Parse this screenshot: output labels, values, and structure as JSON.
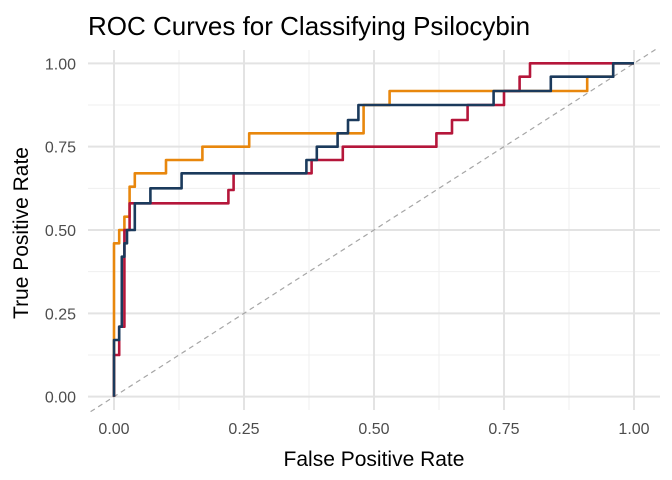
{
  "chart_data": {
    "type": "line",
    "title": "ROC Curves for Classifying Psilocybin",
    "xlabel": "False Positive Rate",
    "ylabel": "True Positive Rate",
    "xlim": [
      -0.05,
      1.05
    ],
    "ylim": [
      -0.04,
      1.04
    ],
    "x_ticks": [
      0.0,
      0.25,
      0.5,
      0.75,
      1.0
    ],
    "x_tick_labels": [
      "0.00",
      "0.25",
      "0.50",
      "0.75",
      "1.00"
    ],
    "y_ticks": [
      0.0,
      0.25,
      0.5,
      0.75,
      1.0
    ],
    "y_tick_labels": [
      "0.00",
      "0.25",
      "0.50",
      "0.75",
      "1.00"
    ],
    "grid": true,
    "legend": "none",
    "reference_line": {
      "from": [
        0,
        0
      ],
      "to": [
        1,
        1
      ],
      "color": "#a6a6a6",
      "style": "dashed"
    },
    "series": [
      {
        "color": "#e8870d",
        "points": [
          [
            0,
            0
          ],
          [
            0,
            0.46
          ],
          [
            0.01,
            0.46
          ],
          [
            0.01,
            0.5
          ],
          [
            0.02,
            0.5
          ],
          [
            0.02,
            0.54
          ],
          [
            0.03,
            0.54
          ],
          [
            0.03,
            0.63
          ],
          [
            0.04,
            0.63
          ],
          [
            0.04,
            0.67
          ],
          [
            0.1,
            0.67
          ],
          [
            0.1,
            0.71
          ],
          [
            0.17,
            0.71
          ],
          [
            0.17,
            0.75
          ],
          [
            0.26,
            0.75
          ],
          [
            0.26,
            0.79
          ],
          [
            0.48,
            0.79
          ],
          [
            0.48,
            0.875
          ],
          [
            0.53,
            0.875
          ],
          [
            0.53,
            0.917
          ],
          [
            0.76,
            0.917
          ],
          [
            0.76,
            0.917
          ],
          [
            0.91,
            0.917
          ],
          [
            0.91,
            0.96
          ],
          [
            0.96,
            0.96
          ],
          [
            0.96,
            1.0
          ],
          [
            1.0,
            1.0
          ]
        ]
      },
      {
        "color": "#b5163a",
        "points": [
          [
            0,
            0
          ],
          [
            0,
            0.125
          ],
          [
            0.01,
            0.125
          ],
          [
            0.01,
            0.21
          ],
          [
            0.02,
            0.21
          ],
          [
            0.02,
            0.5
          ],
          [
            0.03,
            0.5
          ],
          [
            0.03,
            0.58
          ],
          [
            0.22,
            0.58
          ],
          [
            0.22,
            0.62
          ],
          [
            0.23,
            0.62
          ],
          [
            0.23,
            0.67
          ],
          [
            0.38,
            0.67
          ],
          [
            0.38,
            0.71
          ],
          [
            0.44,
            0.71
          ],
          [
            0.44,
            0.75
          ],
          [
            0.62,
            0.75
          ],
          [
            0.62,
            0.79
          ],
          [
            0.65,
            0.79
          ],
          [
            0.65,
            0.83
          ],
          [
            0.68,
            0.83
          ],
          [
            0.68,
            0.875
          ],
          [
            0.75,
            0.875
          ],
          [
            0.75,
            0.917
          ],
          [
            0.78,
            0.917
          ],
          [
            0.78,
            0.96
          ],
          [
            0.8,
            0.96
          ],
          [
            0.8,
            1.0
          ],
          [
            1.0,
            1.0
          ]
        ]
      },
      {
        "color": "#1b3a5c",
        "points": [
          [
            0,
            0
          ],
          [
            0,
            0.17
          ],
          [
            0.01,
            0.17
          ],
          [
            0.01,
            0.21
          ],
          [
            0.015,
            0.21
          ],
          [
            0.015,
            0.42
          ],
          [
            0.02,
            0.42
          ],
          [
            0.02,
            0.46
          ],
          [
            0.025,
            0.46
          ],
          [
            0.025,
            0.5
          ],
          [
            0.04,
            0.5
          ],
          [
            0.04,
            0.58
          ],
          [
            0.07,
            0.58
          ],
          [
            0.07,
            0.625
          ],
          [
            0.13,
            0.625
          ],
          [
            0.13,
            0.67
          ],
          [
            0.37,
            0.67
          ],
          [
            0.37,
            0.71
          ],
          [
            0.39,
            0.71
          ],
          [
            0.39,
            0.75
          ],
          [
            0.43,
            0.75
          ],
          [
            0.43,
            0.79
          ],
          [
            0.45,
            0.79
          ],
          [
            0.45,
            0.83
          ],
          [
            0.47,
            0.83
          ],
          [
            0.47,
            0.875
          ],
          [
            0.73,
            0.875
          ],
          [
            0.73,
            0.917
          ],
          [
            0.84,
            0.917
          ],
          [
            0.84,
            0.96
          ],
          [
            0.96,
            0.96
          ],
          [
            0.96,
            1.0
          ],
          [
            1.0,
            1.0
          ]
        ]
      }
    ]
  }
}
